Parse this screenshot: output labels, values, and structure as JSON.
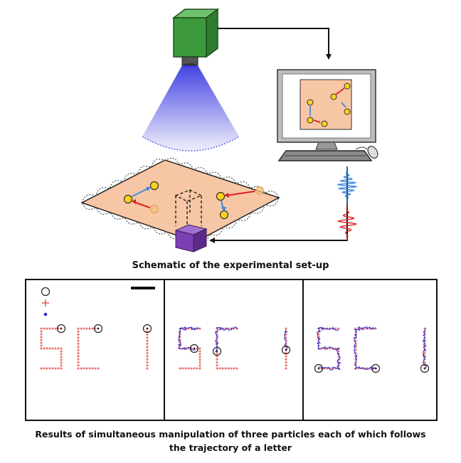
{
  "setup_caption": "Schematic of the experimental set-up",
  "results_caption_line1": "Results of simultaneous manipulation of three particles each of which follows",
  "results_caption_line2": "the trajectory of a letter",
  "letters": [
    "S",
    "C",
    "I"
  ],
  "colors": {
    "camera_green": "#3c9a3c",
    "light_blue": "#3a3ae0",
    "plate_peach": "#f7c6a4",
    "particle_yellow": "#f5d320",
    "arrow_red": "#e02020",
    "arrow_blue": "#3d8be0",
    "actuator_purple": "#7b3fb3",
    "target_red": "#e04040",
    "trajectory_blue": "#2a2ad0"
  },
  "icons": [
    "camera-icon",
    "computer-monitor-icon",
    "keyboard-icon",
    "mouse-icon",
    "actuator-icon"
  ]
}
